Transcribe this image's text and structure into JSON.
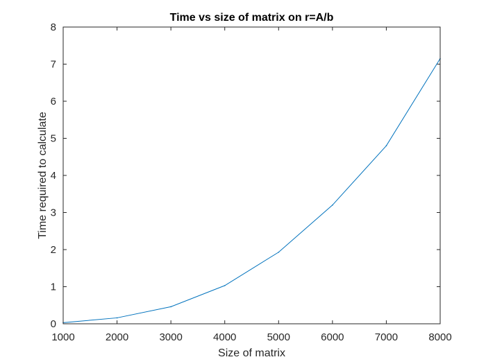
{
  "chart_data": {
    "type": "line",
    "title": "Time vs size of matrix on r=A/b",
    "xlabel": "Size of matrix",
    "ylabel": "Time required to calculate",
    "xlim": [
      1000,
      8000
    ],
    "ylim": [
      0,
      8
    ],
    "xticks": [
      1000,
      2000,
      3000,
      4000,
      5000,
      6000,
      7000,
      8000
    ],
    "yticks": [
      0,
      1,
      2,
      3,
      4,
      5,
      6,
      7,
      8
    ],
    "grid": false,
    "box": true,
    "series": [
      {
        "x": [
          1000,
          2000,
          3000,
          4000,
          5000,
          6000,
          7000,
          8000
        ],
        "y": [
          0.03,
          0.16,
          0.46,
          1.03,
          1.93,
          3.2,
          4.8,
          7.15
        ],
        "color": "#0072BD"
      }
    ]
  }
}
